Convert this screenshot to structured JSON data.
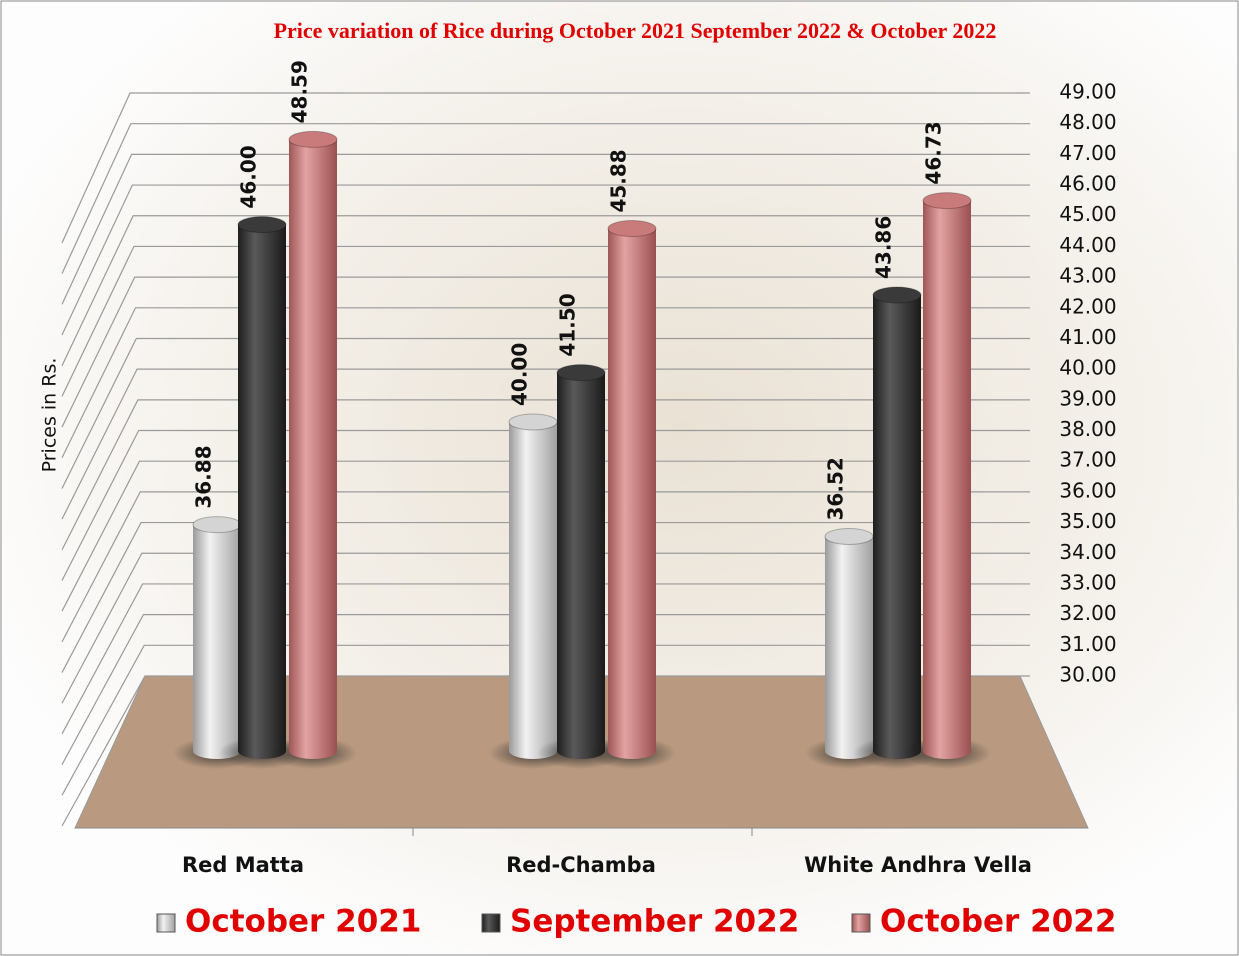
{
  "chart_data": {
    "type": "bar3d",
    "title": "Price variation of Rice during  October 2021  September 2022  &  October 2022",
    "y_label": "Prices in Rs.",
    "categories": [
      "Red Matta",
      "Red-Chamba",
      "White Andhra Vella"
    ],
    "series": [
      {
        "name": "October 2021",
        "color": "#d4d4d4",
        "values": [
          36.88,
          40.0,
          36.52
        ],
        "value_labels": [
          "36.88",
          "40.00",
          "36.52"
        ]
      },
      {
        "name": "September 2022",
        "color": "#3a3a3a",
        "values": [
          46.0,
          41.5,
          43.86
        ],
        "value_labels": [
          "46.00",
          "41.50",
          "43.86"
        ]
      },
      {
        "name": "October 2022",
        "color": "#c97a7a",
        "values": [
          48.59,
          45.88,
          46.73
        ],
        "value_labels": [
          "48.59",
          "45.88",
          "46.73"
        ]
      }
    ],
    "ylim": [
      30,
      49
    ],
    "yticks": [
      {
        "value": 30,
        "label": "30.00"
      },
      {
        "value": 31,
        "label": "31.00"
      },
      {
        "value": 32,
        "label": "32.00"
      },
      {
        "value": 33,
        "label": "33.00"
      },
      {
        "value": 34,
        "label": "34.00"
      },
      {
        "value": 35,
        "label": "35.00"
      },
      {
        "value": 36,
        "label": "36.00"
      },
      {
        "value": 37,
        "label": "37.00"
      },
      {
        "value": 38,
        "label": "38.00"
      },
      {
        "value": 39,
        "label": "39.00"
      },
      {
        "value": 40,
        "label": "40.00"
      },
      {
        "value": 41,
        "label": "41.00"
      },
      {
        "value": 42,
        "label": "42.00"
      },
      {
        "value": 43,
        "label": "43.00"
      },
      {
        "value": 44,
        "label": "44.00"
      },
      {
        "value": 45,
        "label": "45.00"
      },
      {
        "value": 46,
        "label": "46.00"
      },
      {
        "value": 47,
        "label": "47.00"
      },
      {
        "value": 48,
        "label": "48.00"
      },
      {
        "value": 49,
        "label": "49.00"
      }
    ],
    "grid": true
  }
}
